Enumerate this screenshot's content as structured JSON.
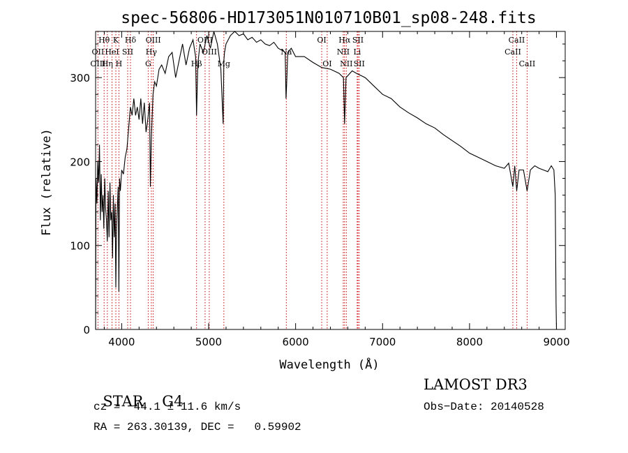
{
  "chart_data": {
    "type": "line",
    "title": "spec-56806-HD173051N010710B01_sp08-248.fits",
    "xlabel": "Wavelength (Å)",
    "ylabel": "Flux (relative)",
    "xlim": [
      3700,
      9100
    ],
    "ylim": [
      0,
      355
    ],
    "xticks": [
      4000,
      5000,
      6000,
      7000,
      8000,
      9000
    ],
    "xtick_labels": [
      "4000",
      "5000",
      "6000",
      "7000",
      "8000",
      "9000"
    ],
    "yticks": [
      0,
      100,
      200,
      300
    ],
    "ytick_labels": [
      "0",
      "100",
      "200",
      "300"
    ],
    "grid": false,
    "series": [
      {
        "name": "spectrum",
        "x": [
          3700,
          3705,
          3715,
          3725,
          3735,
          3745,
          3755,
          3765,
          3775,
          3785,
          3795,
          3805,
          3815,
          3825,
          3835,
          3845,
          3855,
          3865,
          3875,
          3885,
          3895,
          3905,
          3915,
          3925,
          3933,
          3940,
          3950,
          3960,
          3968,
          3975,
          3985,
          4000,
          4020,
          4040,
          4060,
          4080,
          4100,
          4120,
          4140,
          4160,
          4180,
          4200,
          4220,
          4240,
          4260,
          4280,
          4300,
          4320,
          4330,
          4340,
          4360,
          4380,
          4400,
          4430,
          4460,
          4500,
          4540,
          4580,
          4620,
          4660,
          4700,
          4740,
          4780,
          4820,
          4850,
          4861,
          4875,
          4900,
          4940,
          4980,
          5020,
          5060,
          5100,
          5140,
          5167,
          5175,
          5183,
          5200,
          5250,
          5300,
          5350,
          5400,
          5450,
          5500,
          5550,
          5600,
          5650,
          5700,
          5750,
          5800,
          5850,
          5880,
          5890,
          5896,
          5910,
          5950,
          6000,
          6100,
          6200,
          6300,
          6400,
          6500,
          6550,
          6563,
          6580,
          6650,
          6700,
          6800,
          6900,
          7000,
          7100,
          7200,
          7300,
          7400,
          7500,
          7600,
          7700,
          7800,
          7900,
          8000,
          8100,
          8200,
          8300,
          8400,
          8450,
          8498,
          8520,
          8542,
          8570,
          8620,
          8662,
          8700,
          8750,
          8800,
          8850,
          8900,
          8940,
          8970,
          8985,
          8995,
          9000
        ],
        "values": [
          0,
          180,
          150,
          200,
          175,
          220,
          130,
          185,
          140,
          160,
          120,
          180,
          145,
          130,
          105,
          165,
          110,
          175,
          130,
          140,
          85,
          160,
          110,
          150,
          50,
          120,
          145,
          170,
          45,
          180,
          165,
          190,
          185,
          205,
          215,
          240,
          265,
          255,
          275,
          255,
          265,
          250,
          275,
          245,
          270,
          235,
          250,
          270,
          170,
          225,
          280,
          295,
          290,
          310,
          315,
          305,
          325,
          330,
          300,
          320,
          340,
          315,
          335,
          345,
          325,
          255,
          315,
          340,
          330,
          350,
          335,
          355,
          340,
          310,
          245,
          320,
          330,
          340,
          350,
          355,
          350,
          352,
          345,
          348,
          342,
          345,
          340,
          338,
          342,
          335,
          332,
          330,
          275,
          290,
          330,
          335,
          325,
          325,
          318,
          312,
          310,
          305,
          300,
          245,
          300,
          308,
          305,
          300,
          290,
          280,
          275,
          265,
          258,
          252,
          245,
          240,
          232,
          225,
          218,
          210,
          205,
          200,
          195,
          192,
          198,
          170,
          195,
          165,
          190,
          190,
          165,
          190,
          195,
          192,
          190,
          188,
          195,
          190,
          160,
          30,
          0
        ]
      }
    ],
    "line_labels": [
      {
        "text": "Hθ",
        "wave": 3798,
        "row": 1
      },
      {
        "text": "Hη",
        "wave": 3835,
        "row": 3
      },
      {
        "text": "OII",
        "wave": 3727,
        "row": 2
      },
      {
        "text": "OIII",
        "wave": 3727,
        "row": 3
      },
      {
        "text": "K",
        "wave": 3933,
        "row": 1
      },
      {
        "text": "HeI",
        "wave": 3889,
        "row": 2
      },
      {
        "text": "H",
        "wave": 3968,
        "row": 3
      },
      {
        "text": "SII",
        "wave": 4069,
        "row": 2
      },
      {
        "text": "Hδ",
        "wave": 4101,
        "row": 1
      },
      {
        "text": "OIII",
        "wave": 4363,
        "row": 1
      },
      {
        "text": "Hγ",
        "wave": 4341,
        "row": 2
      },
      {
        "text": "G",
        "wave": 4305,
        "row": 3
      },
      {
        "text": "OIII",
        "wave": 4959,
        "row": 1
      },
      {
        "text": "OIII",
        "wave": 5007,
        "row": 2
      },
      {
        "text": "Hβ",
        "wave": 4861,
        "row": 3
      },
      {
        "text": "Mg",
        "wave": 5175,
        "row": 3
      },
      {
        "text": "Na",
        "wave": 5893,
        "row": 2
      },
      {
        "text": "OI",
        "wave": 6300,
        "row": 1
      },
      {
        "text": "OI",
        "wave": 6363,
        "row": 3
      },
      {
        "text": "Hα",
        "wave": 6563,
        "row": 1
      },
      {
        "text": "NII",
        "wave": 6548,
        "row": 2
      },
      {
        "text": "NII",
        "wave": 6583,
        "row": 3
      },
      {
        "text": "SII",
        "wave": 6717,
        "row": 1
      },
      {
        "text": "Li",
        "wave": 6708,
        "row": 2
      },
      {
        "text": "SII",
        "wave": 6731,
        "row": 3
      },
      {
        "text": "CaII",
        "wave": 8542,
        "row": 1
      },
      {
        "text": "CaII",
        "wave": 8498,
        "row": 2
      },
      {
        "text": "CaII",
        "wave": 8662,
        "row": 3
      }
    ],
    "marker_lines": [
      3727,
      3798,
      3835,
      3889,
      3933,
      3968,
      4069,
      4101,
      4305,
      4341,
      4363,
      4861,
      4959,
      5007,
      5175,
      5893,
      6300,
      6363,
      6548,
      6563,
      6583,
      6708,
      6717,
      6731,
      8498,
      8542,
      8662
    ],
    "line_color": "#000000",
    "marker_color": "#cc0000"
  },
  "info": {
    "object_class": "STAR",
    "subclass": "G4",
    "survey": "LAMOST DR3",
    "cz_text": "cz = −44.1 ± 11.6 km/s",
    "obs_date_text": "Obs−Date: 20140528",
    "radec_text": "RA = 263.30139, DEC =   0.59902"
  }
}
